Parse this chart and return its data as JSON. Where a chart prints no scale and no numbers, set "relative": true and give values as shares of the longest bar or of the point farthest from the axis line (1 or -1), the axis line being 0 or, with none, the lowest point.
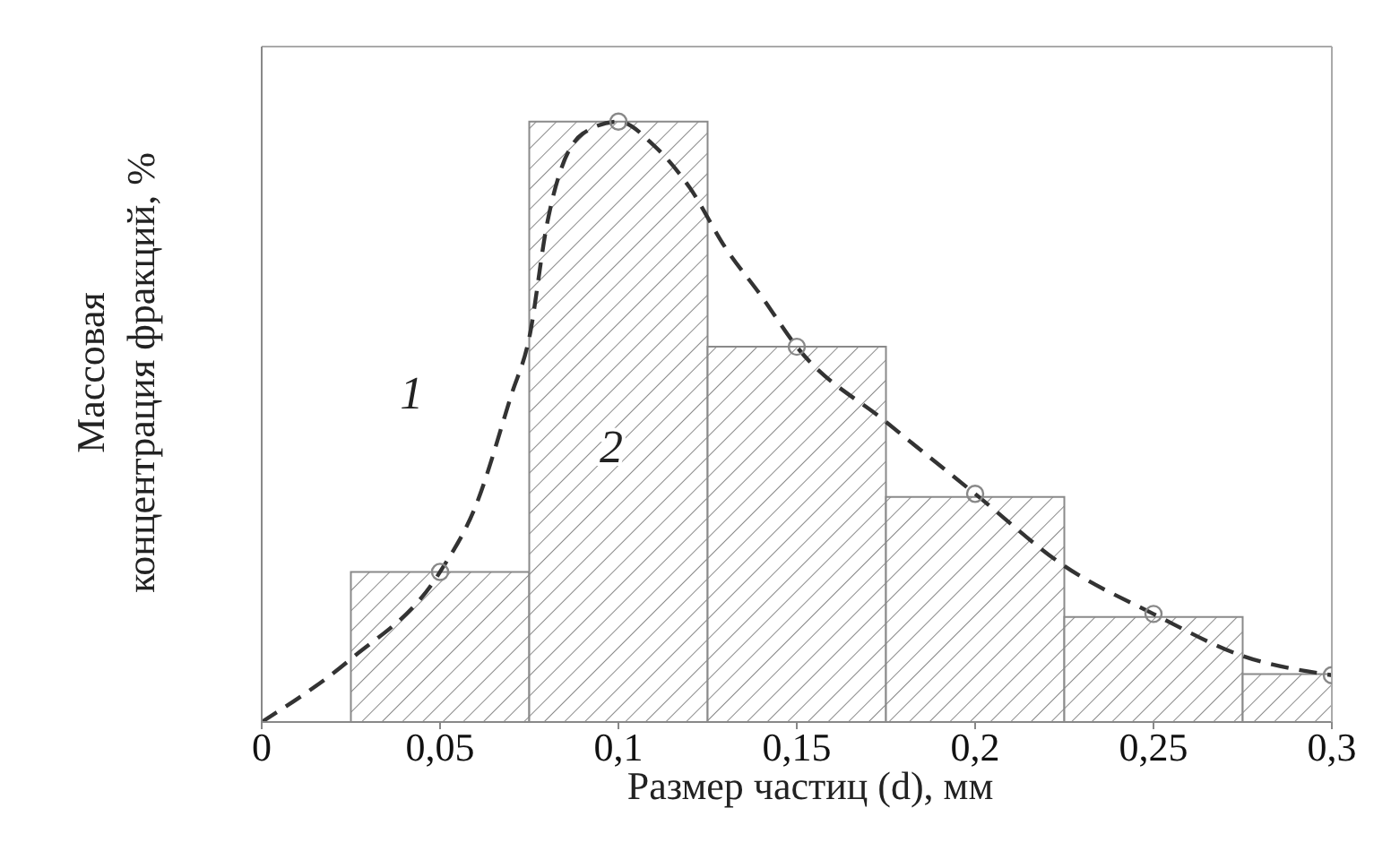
{
  "chart_data": {
    "type": "histogram",
    "relative": true,
    "xlabel": "Размер частиц (d), мм",
    "ylabel": "Массовая концентрация фракций, %",
    "bins": [
      0.025,
      0.075,
      0.125,
      0.175,
      0.225,
      0.275,
      0.3
    ],
    "values": [
      0.25,
      1,
      0.625,
      0.375,
      0.175,
      0.08
    ],
    "color": "#8a8a8a",
    "xlim": [
      0,
      0.3
    ],
    "xticks": [
      0,
      {
        "value": 0.05,
        "label": "0,05"
      },
      {
        "value": 0.1,
        "label": "0,1"
      },
      {
        "value": 0.15,
        "label": "0,15"
      },
      {
        "value": 0.2,
        "label": "0,2"
      },
      {
        "value": 0.25,
        "label": "0,25"
      },
      {
        "value": 0.3,
        "label": "0,3"
      }
    ],
    "series": [
      {
        "type": "line",
        "color": "#333333",
        "line_style": "dashed",
        "marker": "none",
        "x": [
          0,
          0.025,
          0.05,
          0.06,
          0.07,
          0.075,
          0.08,
          0.09,
          0.1,
          0.11,
          0.12,
          0.13,
          0.14,
          0.15,
          0.175,
          0.2,
          0.225,
          0.25,
          0.275,
          0.3
        ],
        "values": [
          0,
          0.105,
          0.25,
          0.36,
          0.545,
          0.64,
          0.83,
          0.98,
          1,
          0.96,
          0.89,
          0.79,
          0.71,
          0.625,
          0.5,
          0.38,
          0.26,
          0.18,
          0.11,
          0.078
        ]
      },
      {
        "type": "scatter",
        "color": "#888888",
        "marker": "circle",
        "x": [
          0.05,
          0.1,
          0.15,
          0.2,
          0.25,
          0.3
        ],
        "values": [
          0.25,
          1,
          0.625,
          0.38,
          0.18,
          0.078
        ]
      }
    ],
    "annotations": [
      "1",
      "2"
    ]
  }
}
